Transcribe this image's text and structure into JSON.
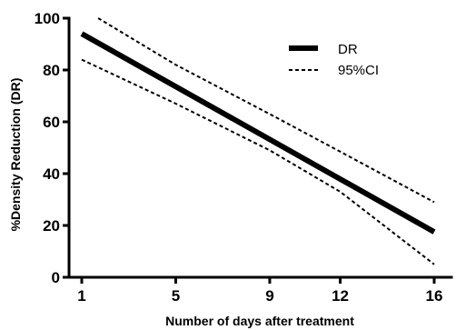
{
  "chart_data": {
    "type": "line",
    "xlabel": "Number of days after treatment",
    "ylabel": "%Density Reduction (DR)",
    "xlim": [
      1,
      16
    ],
    "ylim": [
      0,
      100
    ],
    "x_ticks": [
      1,
      5,
      9,
      12,
      16
    ],
    "y_ticks": [
      0,
      20,
      40,
      60,
      80,
      100
    ],
    "grid": false,
    "legend_position": "top-right",
    "legend": [
      "DR",
      "95%CI"
    ],
    "series": [
      {
        "name": "DR",
        "style": "solid",
        "color": "#000000",
        "x": [
          1,
          16
        ],
        "y": [
          94,
          17.5
        ]
      },
      {
        "name": "95%CI",
        "style": "dashed",
        "color": "#000000",
        "x": [
          1.7,
          5,
          9,
          12,
          16
        ],
        "y": [
          100,
          82,
          63,
          48.5,
          29
        ]
      },
      {
        "name": "95%CI",
        "style": "dashed",
        "color": "#000000",
        "x": [
          1,
          5,
          9,
          12,
          16
        ],
        "y": [
          84,
          67,
          49,
          33,
          5
        ]
      }
    ]
  }
}
